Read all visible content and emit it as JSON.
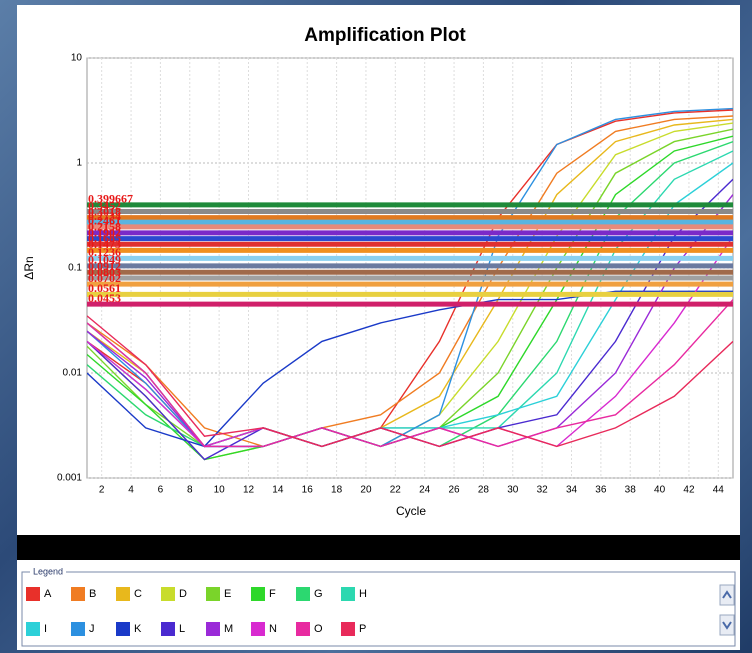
{
  "chart_data": {
    "type": "line",
    "title": "Amplification Plot",
    "x_label": "Cycle",
    "y_label": "ΔRn",
    "log_y": true,
    "grid": true,
    "legend_title": "Legend",
    "xlim": [
      1,
      45
    ],
    "xticks": [
      2,
      4,
      6,
      8,
      10,
      12,
      14,
      16,
      18,
      20,
      22,
      24,
      26,
      28,
      30,
      32,
      34,
      36,
      38,
      40,
      42,
      44
    ],
    "ylim": [
      0.001,
      10
    ],
    "yticks": [
      0.001,
      0.01,
      0.1,
      1,
      10
    ],
    "x": [
      1,
      5,
      9,
      13,
      17,
      21,
      25,
      29,
      33,
      37,
      41,
      45
    ],
    "series": [
      {
        "name": "A",
        "color": "#e8302a",
        "values": [
          0.02,
          0.008,
          0.002,
          0.003,
          0.002,
          0.003,
          0.02,
          0.3,
          1.5,
          2.5,
          3,
          3.2
        ]
      },
      {
        "name": "B",
        "color": "#f07c22",
        "values": [
          0.03,
          0.012,
          0.003,
          0.002,
          0.003,
          0.004,
          0.01,
          0.1,
          0.8,
          2,
          2.6,
          2.8
        ]
      },
      {
        "name": "C",
        "color": "#e8b81c",
        "values": [
          0.025,
          0.01,
          0.002,
          0.003,
          0.002,
          0.003,
          0.006,
          0.05,
          0.5,
          1.6,
          2.3,
          2.6
        ]
      },
      {
        "name": "D",
        "color": "#c8dc2c",
        "values": [
          0.02,
          0.006,
          0.0015,
          0.002,
          0.003,
          0.002,
          0.004,
          0.02,
          0.2,
          1.2,
          2,
          2.4
        ]
      },
      {
        "name": "E",
        "color": "#7ad42a",
        "values": [
          0.018,
          0.005,
          0.002,
          0.003,
          0.002,
          0.003,
          0.003,
          0.01,
          0.1,
          0.8,
          1.6,
          2.1
        ]
      },
      {
        "name": "F",
        "color": "#2ed82a",
        "values": [
          0.015,
          0.005,
          0.0015,
          0.002,
          0.003,
          0.002,
          0.003,
          0.006,
          0.05,
          0.5,
          1.3,
          1.8
        ]
      },
      {
        "name": "G",
        "color": "#2cd870",
        "values": [
          0.012,
          0.004,
          0.002,
          0.003,
          0.002,
          0.003,
          0.002,
          0.004,
          0.02,
          0.3,
          1,
          1.6
        ]
      },
      {
        "name": "H",
        "color": "#2cd8b0",
        "values": [
          0.02,
          0.007,
          0.002,
          0.002,
          0.003,
          0.002,
          0.003,
          0.003,
          0.01,
          0.15,
          0.7,
          1.3
        ]
      },
      {
        "name": "I",
        "color": "#2cd0d8",
        "values": [
          0.03,
          0.01,
          0.002,
          0.003,
          0.002,
          0.003,
          0.003,
          0.004,
          0.006,
          0.05,
          0.4,
          1
        ]
      },
      {
        "name": "J",
        "color": "#2c90e0",
        "values": [
          0.025,
          0.008,
          0.002,
          0.002,
          0.003,
          0.002,
          0.004,
          0.2,
          1.5,
          2.6,
          3.1,
          3.3
        ]
      },
      {
        "name": "K",
        "color": "#1a3ac8",
        "values": [
          0.01,
          0.003,
          0.002,
          0.008,
          0.02,
          0.03,
          0.04,
          0.05,
          0.05,
          0.06,
          0.06,
          0.06
        ]
      },
      {
        "name": "L",
        "color": "#4a2ad0",
        "values": [
          0.02,
          0.006,
          0.0015,
          0.003,
          0.002,
          0.003,
          0.002,
          0.003,
          0.004,
          0.02,
          0.2,
          0.7
        ]
      },
      {
        "name": "M",
        "color": "#9a2ad8",
        "values": [
          0.025,
          0.009,
          0.002,
          0.002,
          0.003,
          0.002,
          0.003,
          0.002,
          0.003,
          0.01,
          0.1,
          0.5
        ]
      },
      {
        "name": "N",
        "color": "#d82ad0",
        "values": [
          0.02,
          0.007,
          0.002,
          0.003,
          0.002,
          0.003,
          0.002,
          0.003,
          0.002,
          0.006,
          0.03,
          0.2
        ]
      },
      {
        "name": "O",
        "color": "#e82aa0",
        "values": [
          0.03,
          0.01,
          0.002,
          0.002,
          0.003,
          0.002,
          0.003,
          0.002,
          0.003,
          0.004,
          0.012,
          0.05
        ]
      },
      {
        "name": "P",
        "color": "#e82a5a",
        "values": [
          0.035,
          0.012,
          0.0025,
          0.003,
          0.002,
          0.003,
          0.002,
          0.003,
          0.002,
          0.003,
          0.006,
          0.02
        ]
      }
    ],
    "thresholds": [
      {
        "value": 0.399667,
        "color": "#1f8a3a"
      },
      {
        "value": 0.3452,
        "color": "#8a8a8a"
      },
      {
        "value": 0.3018,
        "color": "#e07a20"
      },
      {
        "value": 0.2734,
        "color": "#5ab4e0"
      },
      {
        "value": 0.2461,
        "color": "#e88a7a"
      },
      {
        "value": 0.2158,
        "color": "#7a2ac8"
      },
      {
        "value": 0.1902,
        "color": "#2a4ad0"
      },
      {
        "value": 0.1685,
        "color": "#e03030"
      },
      {
        "value": 0.1473,
        "color": "#f09020"
      },
      {
        "value": 0.1236,
        "color": "#8ad0f0"
      },
      {
        "value": 0.1049,
        "color": "#6a7aa0"
      },
      {
        "value": 0.0912,
        "color": "#a06a4a"
      },
      {
        "value": 0.0803,
        "color": "#a0a0a0"
      },
      {
        "value": 0.0702,
        "color": "#f0a040"
      },
      {
        "value": 0.0561,
        "color": "#e8d040"
      },
      {
        "value": 0.0453,
        "color": "#d0206a"
      }
    ]
  }
}
